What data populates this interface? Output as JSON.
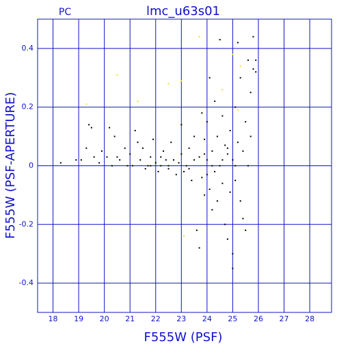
{
  "chart_data": {
    "type": "scatter",
    "title": "lmc_u63s01",
    "corner_label": "PC",
    "x_label": "F555W (PSF)",
    "y_label": "F555W (PSF-APERTURE)",
    "xlim": [
      17.4,
      28.85
    ],
    "ylim": [
      -0.5,
      0.5
    ],
    "xticks": [
      18,
      19,
      20,
      21,
      22,
      23,
      24,
      25,
      26,
      27,
      28
    ],
    "yticks": [
      -0.4,
      -0.2,
      0,
      0.2,
      0.4
    ],
    "grid": true,
    "axis_color": "#1010c8",
    "series": [
      {
        "color": "#000000",
        "x": [
          18.3,
          18.9,
          19.1,
          19.3,
          19.4,
          19.5,
          19.6,
          19.8,
          19.9,
          20.1,
          20.2,
          20.3,
          20.4,
          20.5,
          20.6,
          20.8,
          20.9,
          21.0,
          21.1,
          21.2,
          21.3,
          21.4,
          21.5,
          21.6,
          21.7,
          21.8,
          21.9,
          22.0,
          22.1,
          22.2,
          22.3,
          22.4,
          22.5,
          22.6,
          22.7,
          22.8,
          22.9,
          23.0,
          23.0,
          23.1,
          23.2,
          23.3,
          23.4,
          23.5,
          23.5,
          23.6,
          23.7,
          23.7,
          23.8,
          23.8,
          23.9,
          23.9,
          24.0,
          24.0,
          24.1,
          24.1,
          24.2,
          24.2,
          24.3,
          24.3,
          24.4,
          24.4,
          24.5,
          24.5,
          24.6,
          24.6,
          24.7,
          24.7,
          24.8,
          24.8,
          24.9,
          24.9,
          25.0,
          25.0,
          25.0,
          25.1,
          25.1,
          25.2,
          25.2,
          25.3,
          25.3,
          25.4,
          25.4,
          25.5,
          25.5,
          25.6,
          25.6,
          25.7,
          25.7,
          25.8,
          25.8,
          25.9,
          25.9,
          24.2,
          22.5,
          23.3,
          24.8,
          25.1,
          24.0,
          23.9,
          24.6,
          21.8,
          22.2
        ],
        "y": [
          0.01,
          0.02,
          0.02,
          0.06,
          0.14,
          0.13,
          0.03,
          0.01,
          0.05,
          0.03,
          0.13,
          0.0,
          0.1,
          0.03,
          0.02,
          0.06,
          0.0,
          0.04,
          0.0,
          0.12,
          0.08,
          0.02,
          0.06,
          -0.01,
          0.0,
          0.03,
          0.09,
          0.01,
          -0.02,
          0.0,
          0.05,
          0.02,
          -0.01,
          0.08,
          0.02,
          -0.03,
          0.01,
          0.04,
          0.14,
          -0.02,
          0.0,
          0.06,
          -0.05,
          0.02,
          0.1,
          -0.22,
          0.03,
          -0.28,
          0.18,
          -0.04,
          0.09,
          -0.1,
          0.02,
          0.15,
          -0.08,
          0.3,
          0.05,
          -0.15,
          0.22,
          -0.02,
          0.1,
          -0.12,
          0.43,
          0.0,
          -0.06,
          0.17,
          0.07,
          -0.2,
          -0.25,
          0.04,
          0.12,
          -0.09,
          0.02,
          -0.3,
          -0.35,
          0.2,
          -0.05,
          0.08,
          0.42,
          -0.12,
          0.3,
          0.05,
          -0.18,
          0.15,
          -0.22,
          0.36,
          0.0,
          0.25,
          0.1,
          0.44,
          0.33,
          0.36,
          0.32,
          0.0,
          0.0,
          -0.01,
          0.06,
          0.0,
          -0.03,
          0.04,
          0.02,
          0.0,
          0.03
        ]
      },
      {
        "color": "#f0e020",
        "x": [
          20.5,
          19.3,
          21.3,
          22.5,
          23.0,
          23.7,
          25.0,
          25.3,
          24.6,
          23.1,
          25.2
        ],
        "y": [
          0.31,
          0.21,
          0.22,
          0.28,
          0.29,
          0.44,
          0.38,
          0.34,
          0.26,
          -0.24,
          0.19
        ]
      }
    ]
  }
}
